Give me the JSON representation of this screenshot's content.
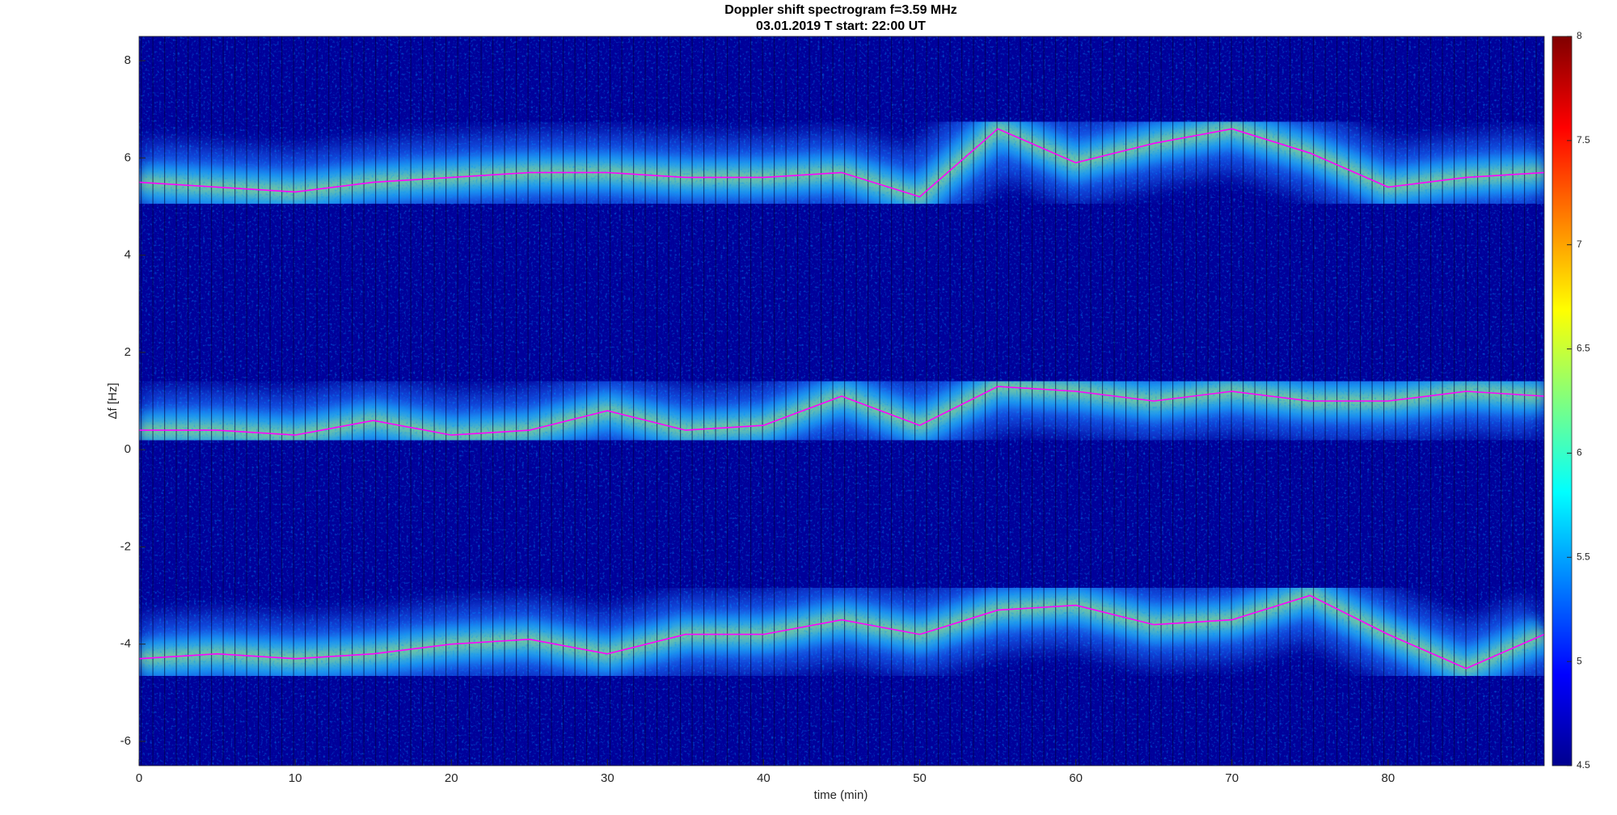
{
  "chart_data": {
    "type": "spectrogram",
    "title": "Doppler shift spectrogram f=3.59 MHz",
    "subtitle": "03.01.2019   T start: 22:00 UT",
    "x_label": "time (min)",
    "y_label": "Δf [Hz]",
    "x": [
      0,
      5,
      10,
      15,
      20,
      25,
      30,
      35,
      40,
      45,
      50,
      55,
      60,
      65,
      70,
      75,
      80,
      85,
      90
    ],
    "series": [
      {
        "color": "#ff00ff",
        "values": [
          5.5,
          5.4,
          5.3,
          5.5,
          5.6,
          5.7,
          5.7,
          5.6,
          5.6,
          5.7,
          5.2,
          6.6,
          5.9,
          6.3,
          6.6,
          6.1,
          5.4,
          5.6,
          5.7
        ]
      },
      {
        "color": "#ff00ff",
        "values": [
          0.4,
          0.4,
          0.3,
          0.6,
          0.3,
          0.4,
          0.8,
          0.4,
          0.5,
          1.1,
          0.5,
          1.3,
          1.2,
          1.0,
          1.2,
          1.0,
          1.0,
          1.2,
          1.1
        ]
      },
      {
        "color": "#ff00ff",
        "values": [
          -4.3,
          -4.2,
          -4.3,
          -4.2,
          -4.0,
          -3.9,
          -4.2,
          -3.8,
          -3.8,
          -3.5,
          -3.8,
          -3.3,
          -3.2,
          -3.6,
          -3.5,
          -3.0,
          -3.8,
          -4.5,
          -3.8
        ]
      }
    ],
    "xlim": [
      0,
      90
    ],
    "xticks": [
      0,
      10,
      20,
      30,
      40,
      50,
      60,
      70,
      80
    ],
    "ylim": [
      -6.5,
      8.5
    ],
    "yticks": [
      -6,
      -4,
      -2,
      0,
      2,
      4,
      6,
      8
    ],
    "colormap": "jet",
    "clim": [
      4.5,
      8
    ],
    "cticks": [
      4.5,
      5,
      5.5,
      6,
      6.5,
      7,
      7.5,
      8
    ]
  }
}
